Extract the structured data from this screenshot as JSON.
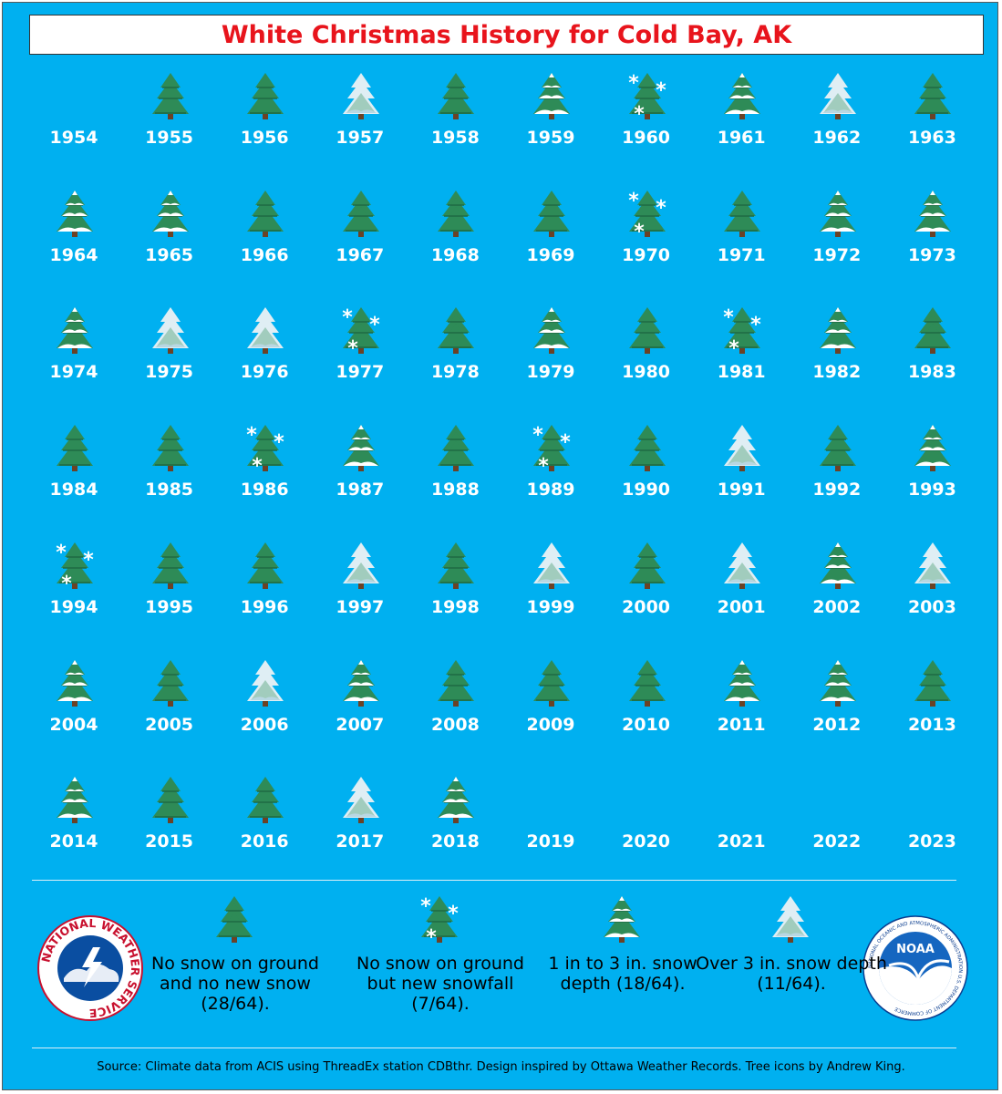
{
  "title": "White Christmas History for Cold Bay, AK",
  "chart_data": {
    "type": "table",
    "title": "White Christmas History for Cold Bay, AK",
    "categories": [
      {
        "key": "none",
        "label": "No snow on ground and no new snow (28/64).",
        "count": 28
      },
      {
        "key": "new_snow",
        "label": "No snow on ground but new snowfall (7/64).",
        "count": 7
      },
      {
        "key": "1to3",
        "label": "1 in to 3 in. snow depth (18/64).",
        "count": 18
      },
      {
        "key": "over3",
        "label": "Over 3 in. snow depth (11/64).",
        "count": 11
      }
    ],
    "years": [
      {
        "year": "1954",
        "category": "missing"
      },
      {
        "year": "1955",
        "category": "none"
      },
      {
        "year": "1956",
        "category": "none"
      },
      {
        "year": "1957",
        "category": "over3"
      },
      {
        "year": "1958",
        "category": "none"
      },
      {
        "year": "1959",
        "category": "1to3"
      },
      {
        "year": "1960",
        "category": "new_snow"
      },
      {
        "year": "1961",
        "category": "1to3"
      },
      {
        "year": "1962",
        "category": "over3"
      },
      {
        "year": "1963",
        "category": "none"
      },
      {
        "year": "1964",
        "category": "1to3"
      },
      {
        "year": "1965",
        "category": "1to3"
      },
      {
        "year": "1966",
        "category": "none"
      },
      {
        "year": "1967",
        "category": "none"
      },
      {
        "year": "1968",
        "category": "none"
      },
      {
        "year": "1969",
        "category": "none"
      },
      {
        "year": "1970",
        "category": "new_snow"
      },
      {
        "year": "1971",
        "category": "none"
      },
      {
        "year": "1972",
        "category": "1to3"
      },
      {
        "year": "1973",
        "category": "1to3"
      },
      {
        "year": "1974",
        "category": "1to3"
      },
      {
        "year": "1975",
        "category": "over3"
      },
      {
        "year": "1976",
        "category": "over3"
      },
      {
        "year": "1977",
        "category": "new_snow"
      },
      {
        "year": "1978",
        "category": "none"
      },
      {
        "year": "1979",
        "category": "1to3"
      },
      {
        "year": "1980",
        "category": "none"
      },
      {
        "year": "1981",
        "category": "new_snow"
      },
      {
        "year": "1982",
        "category": "1to3"
      },
      {
        "year": "1983",
        "category": "none"
      },
      {
        "year": "1984",
        "category": "none"
      },
      {
        "year": "1985",
        "category": "none"
      },
      {
        "year": "1986",
        "category": "new_snow"
      },
      {
        "year": "1987",
        "category": "1to3"
      },
      {
        "year": "1988",
        "category": "none"
      },
      {
        "year": "1989",
        "category": "new_snow"
      },
      {
        "year": "1990",
        "category": "none"
      },
      {
        "year": "1991",
        "category": "over3"
      },
      {
        "year": "1992",
        "category": "none"
      },
      {
        "year": "1993",
        "category": "1to3"
      },
      {
        "year": "1994",
        "category": "new_snow"
      },
      {
        "year": "1995",
        "category": "none"
      },
      {
        "year": "1996",
        "category": "none"
      },
      {
        "year": "1997",
        "category": "over3"
      },
      {
        "year": "1998",
        "category": "none"
      },
      {
        "year": "1999",
        "category": "over3"
      },
      {
        "year": "2000",
        "category": "none"
      },
      {
        "year": "2001",
        "category": "over3"
      },
      {
        "year": "2002",
        "category": "1to3"
      },
      {
        "year": "2003",
        "category": "over3"
      },
      {
        "year": "2004",
        "category": "1to3"
      },
      {
        "year": "2005",
        "category": "none"
      },
      {
        "year": "2006",
        "category": "over3"
      },
      {
        "year": "2007",
        "category": "1to3"
      },
      {
        "year": "2008",
        "category": "none"
      },
      {
        "year": "2009",
        "category": "none"
      },
      {
        "year": "2010",
        "category": "none"
      },
      {
        "year": "2011",
        "category": "1to3"
      },
      {
        "year": "2012",
        "category": "1to3"
      },
      {
        "year": "2013",
        "category": "none"
      },
      {
        "year": "2014",
        "category": "1to3"
      },
      {
        "year": "2015",
        "category": "none"
      },
      {
        "year": "2016",
        "category": "none"
      },
      {
        "year": "2017",
        "category": "over3"
      },
      {
        "year": "2018",
        "category": "1to3"
      },
      {
        "year": "2019",
        "category": "missing"
      },
      {
        "year": "2020",
        "category": "missing"
      },
      {
        "year": "2021",
        "category": "missing"
      },
      {
        "year": "2022",
        "category": "missing"
      },
      {
        "year": "2023",
        "category": "missing"
      }
    ]
  },
  "legend": [
    {
      "category": "none",
      "text": "No snow on ground and no new snow (28/64)."
    },
    {
      "category": "new_snow",
      "text": "No snow on ground but new snowfall (7/64)."
    },
    {
      "category": "1to3",
      "text": "1 in to 3 in. snow depth (18/64)."
    },
    {
      "category": "over3",
      "text": "Over 3 in. snow depth (11/64)."
    }
  ],
  "logos": {
    "nws": {
      "text": "NATIONAL WEATHER SERVICE"
    },
    "noaa": {
      "text": "NOAA",
      "ring_text": "NATIONAL OCEANIC AND ATMOSPHERIC ADMINISTRATION U.S. DEPARTMENT OF COMMERCE"
    }
  },
  "source": "Source: Climate data from ACIS using ThreadEx station CDBthr. Design inspired by Ottawa Weather Records. Tree icons by Andrew King.",
  "colors": {
    "background": "#00b0f0",
    "title": "#e8141c",
    "tree": "#2e8b57",
    "snow": "#ffffff"
  }
}
